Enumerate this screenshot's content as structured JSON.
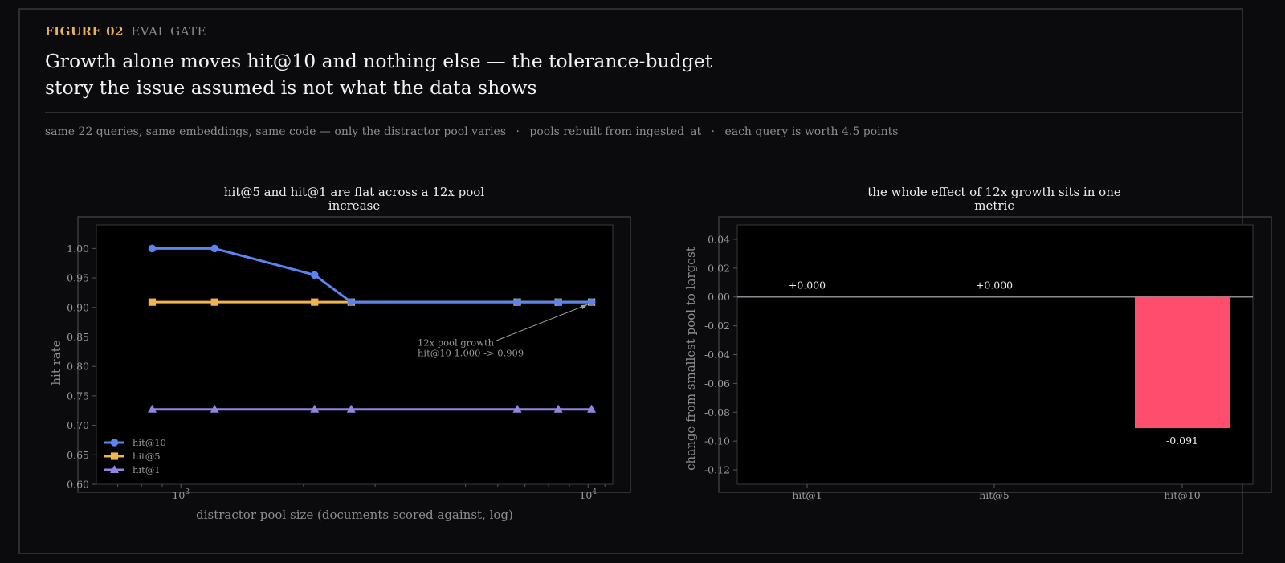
{
  "header": {
    "figure_label": "FIGURE 02",
    "figure_tag": "EVAL GATE",
    "headline": "Growth alone moves hit@10 and nothing else — the tolerance-budget story the issue assumed is not what the data shows",
    "subline": [
      "same 22 queries, same embeddings, same code — only the distractor pool varies",
      "pools rebuilt from ingested_at",
      "each query is worth 4.5 points"
    ],
    "separator": "·"
  },
  "colors": {
    "hit10": "#5b84f0",
    "hit5": "#f0b550",
    "hit1": "#8f86e0",
    "negative_bar": "#ff4d6d",
    "accent": "#e8b05a"
  },
  "chart_data": [
    {
      "type": "line",
      "title": "hit@5 and hit@1 are flat across a 12x pool increase",
      "title_lines": [
        "hit@5 and hit@1 are flat across a 12x pool",
        "increase"
      ],
      "xlabel": "distractor pool size (documents scored against, log)",
      "ylabel": "hit rate",
      "xscale": "log",
      "xlim": [
        620,
        11500
      ],
      "ylim": [
        0.6,
        1.04
      ],
      "yticks": [
        "1.00",
        "0.95",
        "0.90",
        "0.85",
        "0.80",
        "0.75",
        "0.70",
        "0.65",
        "0.60"
      ],
      "xticks": [
        {
          "value": 1000,
          "base": "10",
          "exp": "3"
        },
        {
          "value": 10000,
          "base": "10",
          "exp": "4"
        }
      ],
      "x": [
        850,
        1210,
        2130,
        2620,
        6700,
        8450,
        10200
      ],
      "series": [
        {
          "name": "hit@10",
          "marker": "circle",
          "values": [
            1.0,
            1.0,
            0.955,
            0.909,
            0.909,
            0.909,
            0.909
          ]
        },
        {
          "name": "hit@5",
          "marker": "square",
          "values": [
            0.909,
            0.909,
            0.909,
            0.909,
            0.909,
            0.909,
            0.909
          ]
        },
        {
          "name": "hit@1",
          "marker": "triangle",
          "values": [
            0.727,
            0.727,
            0.727,
            0.727,
            0.727,
            0.727,
            0.727
          ]
        }
      ],
      "annotation": {
        "lines": [
          "12x pool growth",
          "hit@10 1.000 -> 0.909"
        ],
        "points_to": [
          10200,
          0.909
        ]
      },
      "legend": "lower-left",
      "grid": false
    },
    {
      "type": "bar",
      "title": "the whole effect of 12x growth sits in one metric",
      "title_lines": [
        "the whole effect of 12x growth sits in one",
        "metric"
      ],
      "ylabel": "change from smallest pool to largest",
      "categories": [
        "hit@1",
        "hit@5",
        "hit@10"
      ],
      "values": [
        0.0,
        0.0,
        -0.091
      ],
      "value_labels": [
        "+0.000",
        "+0.000",
        "-0.091"
      ],
      "ylim": [
        -0.13,
        0.05
      ],
      "yticks": [
        "0.04",
        "0.02",
        "0.00",
        "-0.02",
        "-0.04",
        "-0.06",
        "-0.08",
        "-0.10",
        "-0.12"
      ],
      "grid": false
    }
  ]
}
